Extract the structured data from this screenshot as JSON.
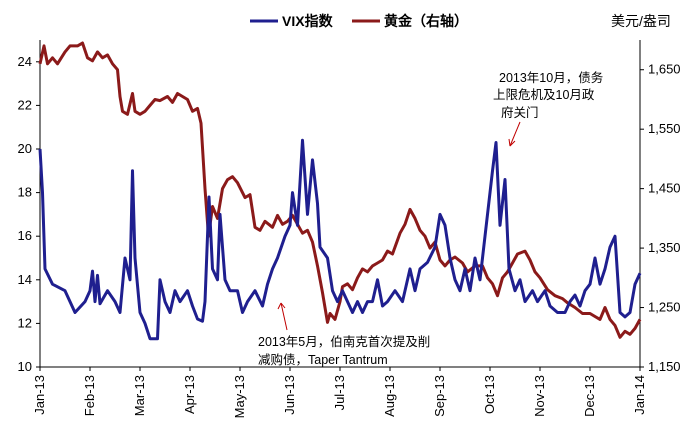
{
  "chart_data": {
    "type": "line",
    "unit_right": "美元/盎司",
    "legend": [
      {
        "name": "VIX指数",
        "color": "#1f1f8f"
      },
      {
        "name": "黄金（右轴）",
        "color": "#8b1a1a"
      }
    ],
    "x_labels": [
      "Jan-13",
      "Feb-13",
      "Mar-13",
      "Apr-13",
      "May-13",
      "Jun-13",
      "Jul-13",
      "Aug-13",
      "Sep-13",
      "Oct-13",
      "Nov-13",
      "Dec-13",
      "Jan-14"
    ],
    "y_left": {
      "min": 10,
      "max": 25,
      "ticks": [
        "10",
        "12",
        "14",
        "16",
        "18",
        "20",
        "22",
        "24"
      ]
    },
    "y_right": {
      "min": 1150,
      "max": 1700,
      "ticks": [
        "1,150",
        "1,250",
        "1,350",
        "1,450",
        "1,550",
        "1,650"
      ]
    },
    "series": [
      {
        "name": "VIX指数",
        "axis": "left",
        "color": "#1f1f8f",
        "points": [
          [
            0,
            20.0
          ],
          [
            0.05,
            18.0
          ],
          [
            0.1,
            14.5
          ],
          [
            0.25,
            13.8
          ],
          [
            0.5,
            13.5
          ],
          [
            0.7,
            12.5
          ],
          [
            0.9,
            13.0
          ],
          [
            1.0,
            13.5
          ],
          [
            1.05,
            14.4
          ],
          [
            1.1,
            13.0
          ],
          [
            1.15,
            14.2
          ],
          [
            1.2,
            12.9
          ],
          [
            1.35,
            13.5
          ],
          [
            1.5,
            13.0
          ],
          [
            1.6,
            12.5
          ],
          [
            1.7,
            15.0
          ],
          [
            1.8,
            14.0
          ],
          [
            1.85,
            19.0
          ],
          [
            1.9,
            15.0
          ],
          [
            2.0,
            12.5
          ],
          [
            2.1,
            12.0
          ],
          [
            2.2,
            11.3
          ],
          [
            2.35,
            11.3
          ],
          [
            2.4,
            14.0
          ],
          [
            2.5,
            13.0
          ],
          [
            2.6,
            12.5
          ],
          [
            2.7,
            13.5
          ],
          [
            2.8,
            13.0
          ],
          [
            2.95,
            13.5
          ],
          [
            3.05,
            12.8
          ],
          [
            3.15,
            12.2
          ],
          [
            3.25,
            12.1
          ],
          [
            3.3,
            13.0
          ],
          [
            3.38,
            17.8
          ],
          [
            3.45,
            14.5
          ],
          [
            3.55,
            14.0
          ],
          [
            3.6,
            17.0
          ],
          [
            3.7,
            14.0
          ],
          [
            3.8,
            13.5
          ],
          [
            3.95,
            13.5
          ],
          [
            4.05,
            12.5
          ],
          [
            4.15,
            13.0
          ],
          [
            4.3,
            13.5
          ],
          [
            4.45,
            12.8
          ],
          [
            4.55,
            13.8
          ],
          [
            4.65,
            14.5
          ],
          [
            4.75,
            15.0
          ],
          [
            4.9,
            16.0
          ],
          [
            5.0,
            16.5
          ],
          [
            5.05,
            18.0
          ],
          [
            5.15,
            16.5
          ],
          [
            5.25,
            20.4
          ],
          [
            5.35,
            17.0
          ],
          [
            5.45,
            19.5
          ],
          [
            5.55,
            17.5
          ],
          [
            5.6,
            15.5
          ],
          [
            5.75,
            15.0
          ],
          [
            5.85,
            13.5
          ],
          [
            5.95,
            13.0
          ],
          [
            6.05,
            13.5
          ],
          [
            6.15,
            13.0
          ],
          [
            6.25,
            12.5
          ],
          [
            6.35,
            13.0
          ],
          [
            6.45,
            12.5
          ],
          [
            6.55,
            13.0
          ],
          [
            6.65,
            13.0
          ],
          [
            6.75,
            14.0
          ],
          [
            6.85,
            12.8
          ],
          [
            6.95,
            13.0
          ],
          [
            7.1,
            13.5
          ],
          [
            7.25,
            13.0
          ],
          [
            7.4,
            14.5
          ],
          [
            7.5,
            13.5
          ],
          [
            7.6,
            14.5
          ],
          [
            7.75,
            14.8
          ],
          [
            7.9,
            15.5
          ],
          [
            8.0,
            17.0
          ],
          [
            8.1,
            16.5
          ],
          [
            8.2,
            15.0
          ],
          [
            8.3,
            14.0
          ],
          [
            8.4,
            13.5
          ],
          [
            8.5,
            14.5
          ],
          [
            8.6,
            13.5
          ],
          [
            8.7,
            15.0
          ],
          [
            8.8,
            14.0
          ],
          [
            8.95,
            17.0
          ],
          [
            9.05,
            19.0
          ],
          [
            9.12,
            20.3
          ],
          [
            9.2,
            16.5
          ],
          [
            9.3,
            18.6
          ],
          [
            9.38,
            14.5
          ],
          [
            9.5,
            13.5
          ],
          [
            9.6,
            14.0
          ],
          [
            9.7,
            13.0
          ],
          [
            9.85,
            13.5
          ],
          [
            9.95,
            13.0
          ],
          [
            10.1,
            13.5
          ],
          [
            10.2,
            12.8
          ],
          [
            10.35,
            12.5
          ],
          [
            10.5,
            12.5
          ],
          [
            10.6,
            13.0
          ],
          [
            10.7,
            13.3
          ],
          [
            10.8,
            12.8
          ],
          [
            10.9,
            13.5
          ],
          [
            11.0,
            13.8
          ],
          [
            11.1,
            15.0
          ],
          [
            11.2,
            13.8
          ],
          [
            11.3,
            14.5
          ],
          [
            11.4,
            15.5
          ],
          [
            11.5,
            16.0
          ],
          [
            11.6,
            12.5
          ],
          [
            11.7,
            12.3
          ],
          [
            11.8,
            12.5
          ],
          [
            11.9,
            13.8
          ],
          [
            12.0,
            14.3
          ]
        ]
      },
      {
        "name": "黄金（右轴）",
        "axis": "right",
        "color": "#8b1a1a",
        "points": [
          [
            0,
            1660
          ],
          [
            0.08,
            1690
          ],
          [
            0.15,
            1660
          ],
          [
            0.25,
            1670
          ],
          [
            0.35,
            1660
          ],
          [
            0.5,
            1680
          ],
          [
            0.6,
            1690
          ],
          [
            0.75,
            1690
          ],
          [
            0.85,
            1695
          ],
          [
            0.95,
            1670
          ],
          [
            1.05,
            1665
          ],
          [
            1.15,
            1680
          ],
          [
            1.25,
            1670
          ],
          [
            1.35,
            1675
          ],
          [
            1.45,
            1660
          ],
          [
            1.55,
            1650
          ],
          [
            1.6,
            1605
          ],
          [
            1.65,
            1580
          ],
          [
            1.75,
            1575
          ],
          [
            1.85,
            1610
          ],
          [
            1.9,
            1580
          ],
          [
            2.0,
            1575
          ],
          [
            2.1,
            1580
          ],
          [
            2.2,
            1590
          ],
          [
            2.3,
            1600
          ],
          [
            2.4,
            1598
          ],
          [
            2.55,
            1605
          ],
          [
            2.65,
            1595
          ],
          [
            2.75,
            1610
          ],
          [
            2.85,
            1605
          ],
          [
            2.95,
            1600
          ],
          [
            3.05,
            1580
          ],
          [
            3.15,
            1585
          ],
          [
            3.22,
            1560
          ],
          [
            3.3,
            1450
          ],
          [
            3.37,
            1370
          ],
          [
            3.45,
            1420
          ],
          [
            3.55,
            1400
          ],
          [
            3.65,
            1450
          ],
          [
            3.75,
            1465
          ],
          [
            3.85,
            1470
          ],
          [
            3.95,
            1460
          ],
          [
            4.1,
            1435
          ],
          [
            4.2,
            1440
          ],
          [
            4.3,
            1385
          ],
          [
            4.4,
            1380
          ],
          [
            4.5,
            1395
          ],
          [
            4.65,
            1385
          ],
          [
            4.75,
            1405
          ],
          [
            4.85,
            1390
          ],
          [
            4.95,
            1395
          ],
          [
            5.05,
            1405
          ],
          [
            5.15,
            1390
          ],
          [
            5.25,
            1375
          ],
          [
            5.35,
            1380
          ],
          [
            5.45,
            1360
          ],
          [
            5.55,
            1320
          ],
          [
            5.65,
            1275
          ],
          [
            5.75,
            1225
          ],
          [
            5.8,
            1240
          ],
          [
            5.9,
            1230
          ],
          [
            6.0,
            1260
          ],
          [
            6.05,
            1285
          ],
          [
            6.15,
            1290
          ],
          [
            6.25,
            1280
          ],
          [
            6.35,
            1300
          ],
          [
            6.45,
            1315
          ],
          [
            6.55,
            1310
          ],
          [
            6.65,
            1320
          ],
          [
            6.75,
            1325
          ],
          [
            6.85,
            1330
          ],
          [
            6.95,
            1345
          ],
          [
            7.05,
            1340
          ],
          [
            7.2,
            1375
          ],
          [
            7.3,
            1390
          ],
          [
            7.4,
            1415
          ],
          [
            7.5,
            1400
          ],
          [
            7.6,
            1380
          ],
          [
            7.7,
            1370
          ],
          [
            7.8,
            1350
          ],
          [
            7.9,
            1360
          ],
          [
            8.0,
            1330
          ],
          [
            8.1,
            1320
          ],
          [
            8.2,
            1330
          ],
          [
            8.3,
            1335
          ],
          [
            8.45,
            1325
          ],
          [
            8.55,
            1310
          ],
          [
            8.7,
            1320
          ],
          [
            8.85,
            1320
          ],
          [
            8.95,
            1300
          ],
          [
            9.05,
            1290
          ],
          [
            9.15,
            1270
          ],
          [
            9.25,
            1300
          ],
          [
            9.35,
            1310
          ],
          [
            9.45,
            1325
          ],
          [
            9.55,
            1340
          ],
          [
            9.7,
            1345
          ],
          [
            9.8,
            1330
          ],
          [
            9.9,
            1310
          ],
          [
            10.0,
            1300
          ],
          [
            10.15,
            1280
          ],
          [
            10.3,
            1270
          ],
          [
            10.45,
            1265
          ],
          [
            10.55,
            1258
          ],
          [
            10.7,
            1250
          ],
          [
            10.85,
            1240
          ],
          [
            11.0,
            1240
          ],
          [
            11.1,
            1235
          ],
          [
            11.2,
            1230
          ],
          [
            11.3,
            1250
          ],
          [
            11.4,
            1230
          ],
          [
            11.5,
            1220
          ],
          [
            11.6,
            1200
          ],
          [
            11.7,
            1210
          ],
          [
            11.8,
            1205
          ],
          [
            11.9,
            1215
          ],
          [
            12.0,
            1230
          ]
        ]
      }
    ],
    "annotations": [
      {
        "lines": [
          "2013年10月，债务",
          "上限危机及10月政",
          "府关门"
        ]
      },
      {
        "lines": [
          "2013年5月，伯南克首次提及削",
          "减购债，Taper Tantrum"
        ]
      }
    ]
  }
}
